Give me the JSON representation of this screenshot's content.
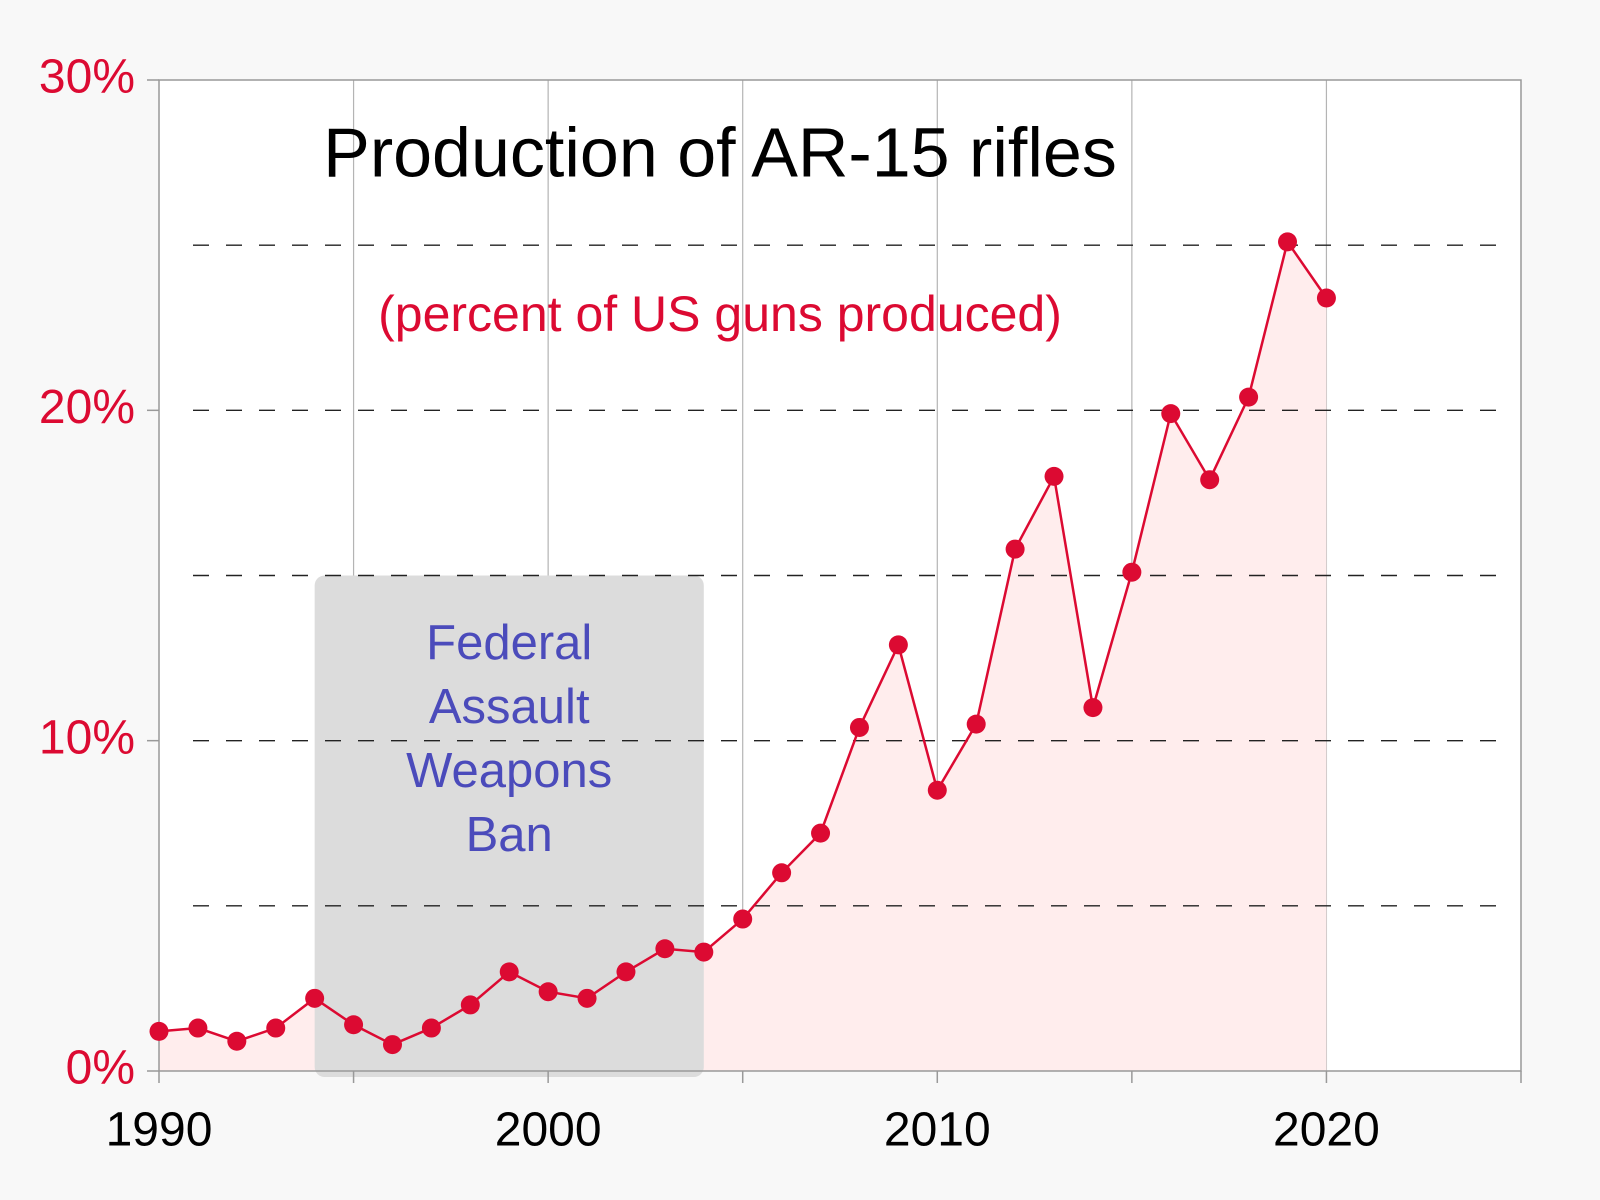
{
  "chart_data": {
    "type": "line",
    "title": "Production of AR-15 rifles",
    "subtitle": "(percent of US guns produced)",
    "x": [
      1990,
      1991,
      1992,
      1993,
      1994,
      1995,
      1996,
      1997,
      1998,
      1999,
      2000,
      2001,
      2002,
      2003,
      2004,
      2005,
      2006,
      2007,
      2008,
      2009,
      2010,
      2011,
      2012,
      2013,
      2014,
      2015,
      2016,
      2017,
      2018,
      2019,
      2020
    ],
    "values": [
      1.2,
      1.3,
      0.9,
      1.3,
      2.2,
      1.4,
      0.8,
      1.3,
      2.0,
      3.0,
      2.4,
      2.2,
      3.0,
      3.7,
      3.6,
      4.6,
      6.0,
      7.2,
      10.4,
      12.9,
      8.5,
      10.5,
      15.8,
      18.0,
      11.0,
      15.1,
      19.9,
      17.9,
      20.4,
      25.1,
      23.4
    ],
    "color": "#dc0a32",
    "fill_color": "#ffeded",
    "xlim": [
      1990,
      2025
    ],
    "xticks": [
      1990,
      2000,
      2010,
      2020
    ],
    "x_minor_ticks": [
      1995,
      2005,
      2015,
      2025
    ],
    "ylim": [
      0,
      30
    ],
    "yticks": [
      {
        "value": 0,
        "label": "0%"
      },
      {
        "value": 10,
        "label": "10%"
      },
      {
        "value": 20,
        "label": "20%"
      },
      {
        "value": 30,
        "label": "30%"
      }
    ],
    "y_dashed_grid": [
      5,
      10,
      15,
      20,
      25
    ],
    "x_grid": [
      1995,
      2000,
      2005,
      2010,
      2015,
      2020
    ],
    "annotation": {
      "lines": [
        "Federal",
        "Assault",
        "Weapons",
        "Ban"
      ],
      "x_range": [
        1994,
        2004
      ],
      "y_top": 15,
      "color": "#dcdcdc",
      "text_color": "#4b4bbb"
    }
  }
}
